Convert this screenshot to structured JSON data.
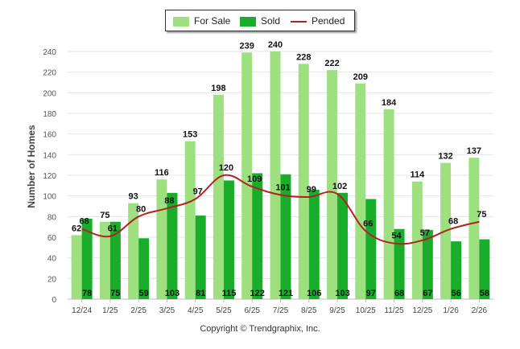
{
  "legend": {
    "for_sale": "For Sale",
    "sold": "Sold",
    "pended": "Pended"
  },
  "colors": {
    "for_sale": "#9ee07f",
    "sold": "#1aad2c",
    "pended": "#b22222"
  },
  "copyright": "Copyright © Trendgraphix, Inc.",
  "chart_data": {
    "type": "bar",
    "ylabel": "Number of Homes",
    "ylim": [
      0,
      240
    ],
    "yticks": [
      0,
      20,
      40,
      60,
      80,
      100,
      120,
      140,
      160,
      180,
      200,
      220,
      240
    ],
    "grid": true,
    "legend_position": "top-center",
    "categories": [
      "12/24",
      "1/25",
      "2/25",
      "3/25",
      "4/25",
      "5/25",
      "6/25",
      "7/25",
      "8/25",
      "9/25",
      "10/25",
      "11/25",
      "12/25",
      "1/26",
      "2/26"
    ],
    "series": [
      {
        "name": "For Sale",
        "type": "bar",
        "values": [
          62,
          75,
          93,
          116,
          153,
          198,
          239,
          240,
          228,
          222,
          209,
          184,
          114,
          132,
          137
        ]
      },
      {
        "name": "Sold",
        "type": "bar",
        "values": [
          78,
          75,
          59,
          103,
          81,
          115,
          122,
          121,
          106,
          103,
          97,
          68,
          67,
          56,
          58
        ]
      },
      {
        "name": "Pended",
        "type": "line",
        "values": [
          68,
          61,
          80,
          88,
          97,
          120,
          109,
          101,
          99,
          102,
          66,
          54,
          57,
          68,
          75
        ]
      }
    ]
  }
}
